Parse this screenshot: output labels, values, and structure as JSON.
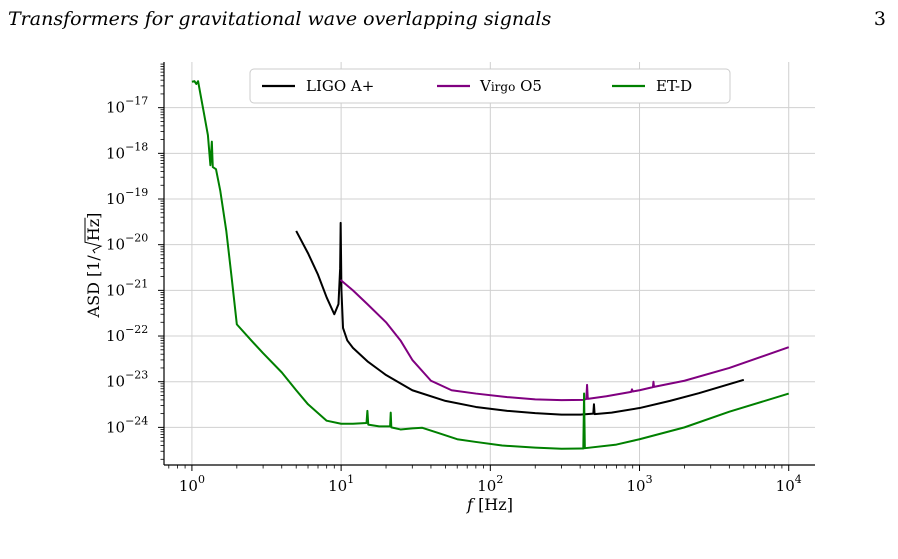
{
  "page": {
    "running_title": "Transformers for gravitational wave overlapping signals",
    "page_number": "3"
  },
  "chart_data": {
    "type": "line",
    "xscale": "log",
    "yscale": "log",
    "xlim": [
      0.65,
      15000
    ],
    "ylim": [
      1.5e-25,
      1e-16
    ],
    "xlabel_var": "f",
    "xlabel_unit": "[Hz]",
    "ylabel_prefix": "ASD [1/",
    "ylabel_radicand": "Hz",
    "ylabel_suffix": "]",
    "xticks": [
      {
        "value": 1,
        "base": "10",
        "exp": "0"
      },
      {
        "value": 10,
        "base": "10",
        "exp": "1"
      },
      {
        "value": 100,
        "base": "10",
        "exp": "2"
      },
      {
        "value": 1000,
        "base": "10",
        "exp": "3"
      },
      {
        "value": 10000,
        "base": "10",
        "exp": "4"
      }
    ],
    "yticks": [
      {
        "value": 1e-24,
        "base": "10",
        "exp": "−24"
      },
      {
        "value": 1e-23,
        "base": "10",
        "exp": "−23"
      },
      {
        "value": 1e-22,
        "base": "10",
        "exp": "−22"
      },
      {
        "value": 1e-21,
        "base": "10",
        "exp": "−21"
      },
      {
        "value": 1e-20,
        "base": "10",
        "exp": "−20"
      },
      {
        "value": 1e-19,
        "base": "10",
        "exp": "−19"
      },
      {
        "value": 1e-18,
        "base": "10",
        "exp": "−18"
      },
      {
        "value": 1e-17,
        "base": "10",
        "exp": "−17"
      }
    ],
    "grid": true,
    "legend_position": "top-center",
    "series": [
      {
        "name": "LIGO A+",
        "color": "#000000",
        "points": [
          [
            5,
            2e-20
          ],
          [
            6,
            6.5e-21
          ],
          [
            7,
            2.2e-21
          ],
          [
            8,
            7e-22
          ],
          [
            9,
            3e-22
          ],
          [
            9.6,
            5e-22
          ],
          [
            9.85,
            3e-21
          ],
          [
            9.93,
            3e-20
          ],
          [
            10.05,
            1e-21
          ],
          [
            10.3,
            1.5e-22
          ],
          [
            11,
            8e-23
          ],
          [
            12,
            5.5e-23
          ],
          [
            15,
            2.8e-23
          ],
          [
            20,
            1.4e-23
          ],
          [
            30,
            6.5e-24
          ],
          [
            50,
            3.8e-24
          ],
          [
            80,
            2.8e-24
          ],
          [
            130,
            2.3e-24
          ],
          [
            200,
            2.05e-24
          ],
          [
            300,
            1.9e-24
          ],
          [
            400,
            1.9e-24
          ],
          [
            490,
            2e-24
          ],
          [
            495,
            3.2e-24
          ],
          [
            500,
            1.95e-24
          ],
          [
            650,
            2.1e-24
          ],
          [
            1000,
            2.65e-24
          ],
          [
            1600,
            3.8e-24
          ],
          [
            2500,
            5.6e-24
          ],
          [
            5000,
            1.1e-23
          ]
        ]
      },
      {
        "name": "Virgo O5",
        "label_lead": "V",
        "label_rest": "irgo",
        "label_tail": " O5",
        "color": "#800080",
        "points": [
          [
            9.9,
            1.7e-21
          ],
          [
            12,
            1e-21
          ],
          [
            15,
            5e-22
          ],
          [
            20,
            2e-22
          ],
          [
            25,
            8e-23
          ],
          [
            30,
            3e-23
          ],
          [
            40,
            1.05e-23
          ],
          [
            55,
            6.5e-24
          ],
          [
            80,
            5.5e-24
          ],
          [
            130,
            4.6e-24
          ],
          [
            200,
            4.1e-24
          ],
          [
            300,
            3.95e-24
          ],
          [
            420,
            4e-24
          ],
          [
            440,
            4.2e-24
          ],
          [
            445,
            8.5e-24
          ],
          [
            450,
            4.2e-24
          ],
          [
            600,
            4.8e-24
          ],
          [
            880,
            6e-24
          ],
          [
            890,
            6.8e-24
          ],
          [
            900,
            6.1e-24
          ],
          [
            1000,
            6.5e-24
          ],
          [
            1230,
            7.6e-24
          ],
          [
            1240,
            1e-23
          ],
          [
            1250,
            7.7e-24
          ],
          [
            2000,
            1.05e-23
          ],
          [
            4000,
            2e-23
          ],
          [
            10000,
            5.7e-23
          ]
        ]
      },
      {
        "name": "ET-D",
        "color": "#008000",
        "points": [
          [
            1,
            3.7e-17
          ],
          [
            1.04,
            3.8e-17
          ],
          [
            1.07,
            3.3e-17
          ],
          [
            1.1,
            3.8e-17
          ],
          [
            1.14,
            2e-17
          ],
          [
            1.2,
            8e-18
          ],
          [
            1.28,
            2.5e-18
          ],
          [
            1.33,
            5.5e-19
          ],
          [
            1.36,
            1.8e-18
          ],
          [
            1.38,
            5e-19
          ],
          [
            1.45,
            4.5e-19
          ],
          [
            1.55,
            1.5e-19
          ],
          [
            1.7,
            2e-20
          ],
          [
            1.85,
            1.8e-21
          ],
          [
            2,
            1.8e-22
          ],
          [
            2.5,
            8e-23
          ],
          [
            3,
            4.2e-23
          ],
          [
            4,
            1.6e-23
          ],
          [
            5,
            6.5e-24
          ],
          [
            6,
            3.2e-24
          ],
          [
            8,
            1.4e-24
          ],
          [
            10,
            1.2e-24
          ],
          [
            12,
            1.2e-24
          ],
          [
            14.8,
            1.25e-24
          ],
          [
            15.0,
            2.3e-24
          ],
          [
            15.2,
            1.15e-24
          ],
          [
            18,
            1.05e-24
          ],
          [
            21.3,
            1.05e-24
          ],
          [
            21.5,
            2.1e-24
          ],
          [
            21.7,
            1e-24
          ],
          [
            25,
            9e-25
          ],
          [
            30,
            9.5e-25
          ],
          [
            35,
            9.8e-25
          ],
          [
            45,
            7.5e-25
          ],
          [
            60,
            5.5e-25
          ],
          [
            80,
            4.8e-25
          ],
          [
            120,
            4e-25
          ],
          [
            200,
            3.6e-25
          ],
          [
            300,
            3.4e-25
          ],
          [
            410,
            3.45e-25
          ],
          [
            420,
            3.45e-25
          ],
          [
            425,
            5.5e-24
          ],
          [
            430,
            3.5e-25
          ],
          [
            700,
            4.2e-25
          ],
          [
            1000,
            5.5e-25
          ],
          [
            2000,
            1e-24
          ],
          [
            4000,
            2.2e-24
          ],
          [
            10000,
            5.5e-24
          ]
        ]
      }
    ]
  }
}
